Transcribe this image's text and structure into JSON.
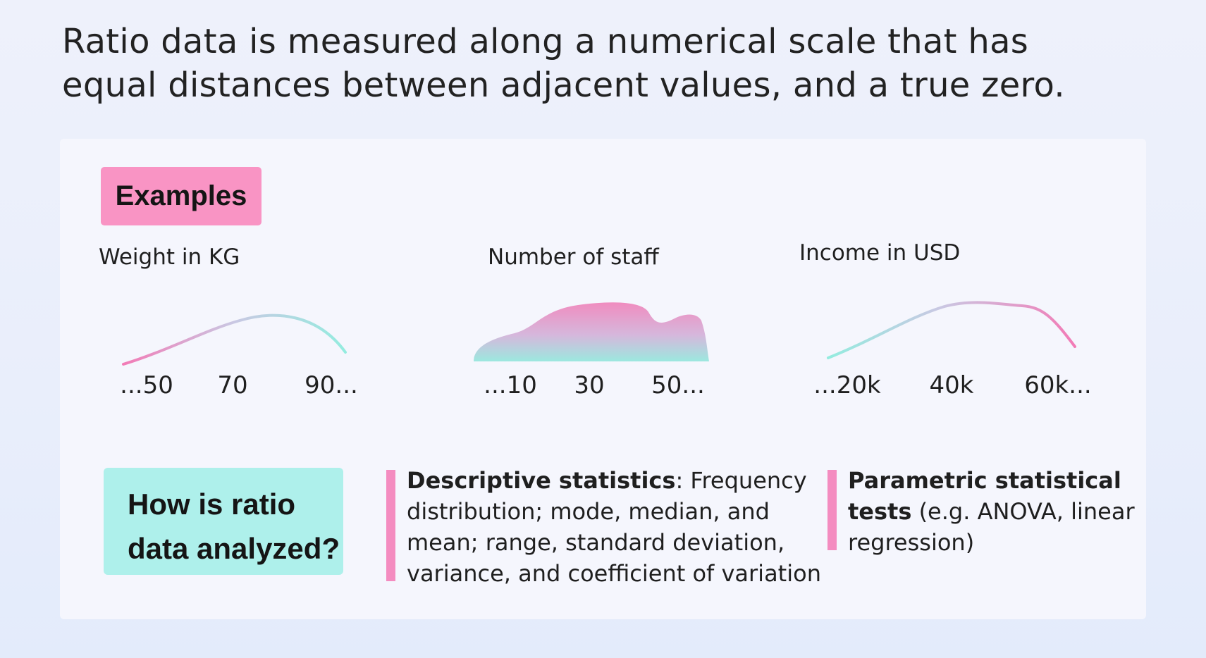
{
  "headline": {
    "line1": "Ratio data is measured along a numerical scale that has",
    "line2": "equal distances between adjacent values, and a true zero."
  },
  "examples_tag": "Examples",
  "charts": [
    {
      "label": "Weight in KG",
      "ticks": [
        "...50",
        "70",
        "90..."
      ]
    },
    {
      "label": "Number of staff",
      "ticks": [
        "...10",
        "30",
        "50..."
      ]
    },
    {
      "label": "Income in USD",
      "ticks": [
        "...20k",
        "40k",
        "60k..."
      ]
    }
  ],
  "how_tag": {
    "line1": "How is ratio",
    "line2": "data analyzed?"
  },
  "descriptive": {
    "bold": "Descriptive statistics",
    "line1_rest": ": Frequency",
    "line2": "distribution; mode, median, and",
    "line3": "mean; range, standard deviation,",
    "line4": "variance, and coefficient of variation"
  },
  "parametric": {
    "bold1": "Parametric statistical",
    "bold2": "tests",
    "line2_rest": " (e.g. ANOVA, linear",
    "line3": "regression)"
  },
  "colors": {
    "pink": "#f994c4",
    "teal": "#aef0eb",
    "accent_bar": "#f48cc0",
    "panel": "#f5f6fd"
  }
}
